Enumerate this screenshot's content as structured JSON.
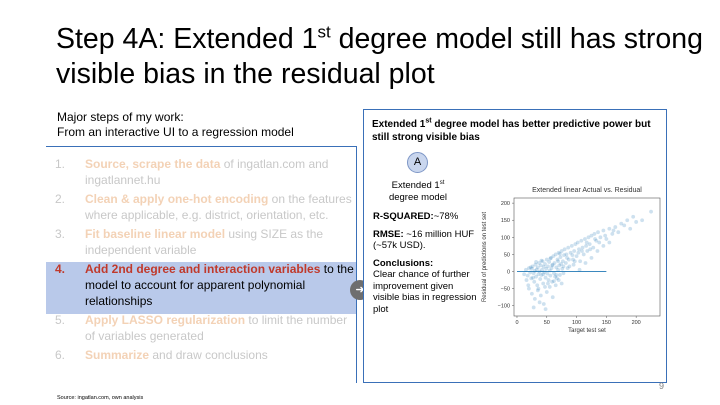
{
  "slide": {
    "title_part1": "Step 4A: Extended 1",
    "title_sup": "st",
    "title_part2": " degree model still has strong visible bias in the residual plot",
    "subtitle_line1": "Major steps of my work:",
    "subtitle_line2": "From an interactive UI to a regression model",
    "page_number": "9",
    "source": "Source: ingatlan.com, own analysis"
  },
  "steps": [
    {
      "num": "1.",
      "lead": "Source, scrape the data",
      "rest": " of ingatlan.com and ingatlannet.hu",
      "active": false
    },
    {
      "num": "2.",
      "lead": "Clean & apply one-hot encoding",
      "rest": " on the features where applicable, e.g. district, orientation, etc.",
      "active": false
    },
    {
      "num": "3.",
      "lead": "Fit baseline linear model",
      "rest": " using SIZE as the independent variable",
      "active": false
    },
    {
      "num": "4.",
      "lead": "Add 2nd degree and interaction variables",
      "rest": " to the model to account for apparent polynomial relationships",
      "active": true
    },
    {
      "num": "5.",
      "lead": "Apply LASSO regularization",
      "rest": " to limit the number of variables generated",
      "active": false
    },
    {
      "num": "6.",
      "lead": "Summarize",
      "rest": " and draw conclusions",
      "active": false
    }
  ],
  "panel": {
    "title_part1": "Extended 1",
    "title_sup": "st",
    "title_part2": " degree model has better predictive power but still strong visible bias",
    "badge": "A",
    "model_line1": "Extended 1",
    "model_sup": "st",
    "model_line2": "degree model",
    "r2_label": "R-SQUARED:",
    "r2_value": "~78%",
    "rmse_label": "RMSE:",
    "rmse_value": " ~16 million HUF (~57k USD).",
    "conclusions_label": "Conclusions:",
    "conclusions_text": "Clear chance of further improvement given visible bias in regression plot",
    "arrow_icon": "arrow-right-icon"
  },
  "chart_data": {
    "type": "scatter",
    "title": "Extended linear Actual vs. Residual",
    "xlabel": "Target test set",
    "ylabel": "Residual of predictions on test set",
    "xlim": [
      -5,
      240
    ],
    "ylim": [
      -130,
      215
    ],
    "x_ticks": [
      0,
      50,
      100,
      150,
      200
    ],
    "y_ticks": [
      -100,
      -50,
      0,
      50,
      100,
      150,
      200
    ],
    "reference_line": {
      "x": [
        0,
        150
      ],
      "y": [
        0,
        0
      ],
      "color": "#1f77b4"
    },
    "point_color": "#1f77b4",
    "points": [
      [
        12,
        -8
      ],
      [
        15,
        5
      ],
      [
        18,
        -12
      ],
      [
        20,
        10
      ],
      [
        22,
        -3
      ],
      [
        24,
        -20
      ],
      [
        25,
        8
      ],
      [
        26,
        15
      ],
      [
        28,
        -5
      ],
      [
        29,
        -30
      ],
      [
        30,
        2
      ],
      [
        31,
        20
      ],
      [
        32,
        -15
      ],
      [
        33,
        6
      ],
      [
        34,
        -40
      ],
      [
        35,
        12
      ],
      [
        36,
        -8
      ],
      [
        37,
        25
      ],
      [
        38,
        0
      ],
      [
        39,
        -22
      ],
      [
        40,
        18
      ],
      [
        41,
        -10
      ],
      [
        42,
        5
      ],
      [
        43,
        30
      ],
      [
        44,
        -35
      ],
      [
        45,
        14
      ],
      [
        46,
        -2
      ],
      [
        47,
        22
      ],
      [
        48,
        -18
      ],
      [
        49,
        8
      ],
      [
        50,
        35
      ],
      [
        51,
        -6
      ],
      [
        52,
        15
      ],
      [
        53,
        -25
      ],
      [
        54,
        28
      ],
      [
        55,
        3
      ],
      [
        56,
        -12
      ],
      [
        57,
        40
      ],
      [
        58,
        10
      ],
      [
        59,
        -30
      ],
      [
        60,
        20
      ],
      [
        61,
        45
      ],
      [
        62,
        -5
      ],
      [
        63,
        25
      ],
      [
        64,
        -15
      ],
      [
        65,
        50
      ],
      [
        66,
        12
      ],
      [
        67,
        -20
      ],
      [
        68,
        35
      ],
      [
        69,
        5
      ],
      [
        70,
        55
      ],
      [
        71,
        18
      ],
      [
        72,
        -10
      ],
      [
        73,
        42
      ],
      [
        74,
        22
      ],
      [
        75,
        60
      ],
      [
        76,
        8
      ],
      [
        77,
        30
      ],
      [
        78,
        -5
      ],
      [
        79,
        48
      ],
      [
        80,
        65
      ],
      [
        82,
        25
      ],
      [
        84,
        40
      ],
      [
        86,
        70
      ],
      [
        88,
        15
      ],
      [
        90,
        55
      ],
      [
        92,
        75
      ],
      [
        94,
        35
      ],
      [
        96,
        60
      ],
      [
        98,
        80
      ],
      [
        100,
        45
      ],
      [
        102,
        85
      ],
      [
        104,
        65
      ],
      [
        106,
        30
      ],
      [
        108,
        90
      ],
      [
        110,
        70
      ],
      [
        112,
        50
      ],
      [
        114,
        95
      ],
      [
        116,
        75
      ],
      [
        118,
        60
      ],
      [
        120,
        100
      ],
      [
        122,
        80
      ],
      [
        125,
        105
      ],
      [
        128,
        70
      ],
      [
        130,
        110
      ],
      [
        133,
        90
      ],
      [
        136,
        115
      ],
      [
        140,
        100
      ],
      [
        145,
        120
      ],
      [
        150,
        95
      ],
      [
        155,
        125
      ],
      [
        160,
        110
      ],
      [
        165,
        130
      ],
      [
        170,
        115
      ],
      [
        180,
        135
      ],
      [
        190,
        125
      ],
      [
        200,
        145
      ],
      [
        210,
        150
      ],
      [
        225,
        175
      ],
      [
        20,
        -50
      ],
      [
        25,
        -65
      ],
      [
        30,
        -80
      ],
      [
        35,
        -55
      ],
      [
        40,
        -70
      ],
      [
        45,
        -95
      ],
      [
        50,
        -60
      ],
      [
        55,
        -45
      ],
      [
        60,
        -75
      ],
      [
        28,
        -105
      ],
      [
        38,
        -90
      ],
      [
        48,
        -110
      ],
      [
        65,
        -40
      ],
      [
        70,
        -25
      ],
      [
        75,
        -35
      ],
      [
        85,
        10
      ],
      [
        95,
        20
      ],
      [
        105,
        5
      ],
      [
        115,
        25
      ],
      [
        125,
        40
      ],
      [
        135,
        60
      ],
      [
        145,
        75
      ],
      [
        155,
        85
      ],
      [
        16,
        -25
      ],
      [
        19,
        -40
      ],
      [
        23,
        12
      ],
      [
        27,
        -18
      ],
      [
        32,
        28
      ],
      [
        36,
        -50
      ],
      [
        41,
        32
      ],
      [
        44,
        -8
      ],
      [
        47,
        -45
      ],
      [
        52,
        -35
      ],
      [
        56,
        38
      ],
      [
        59,
        18
      ],
      [
        62,
        -28
      ],
      [
        66,
        -10
      ],
      [
        69,
        30
      ],
      [
        72,
        52
      ],
      [
        78,
        15
      ],
      [
        83,
        50
      ],
      [
        87,
        35
      ],
      [
        93,
        48
      ],
      [
        97,
        30
      ],
      [
        103,
        55
      ],
      [
        109,
        60
      ],
      [
        117,
        85
      ],
      [
        123,
        65
      ],
      [
        131,
        95
      ],
      [
        138,
        85
      ],
      [
        148,
        105
      ],
      [
        162,
        120
      ],
      [
        175,
        140
      ],
      [
        185,
        150
      ],
      [
        195,
        160
      ]
    ]
  }
}
